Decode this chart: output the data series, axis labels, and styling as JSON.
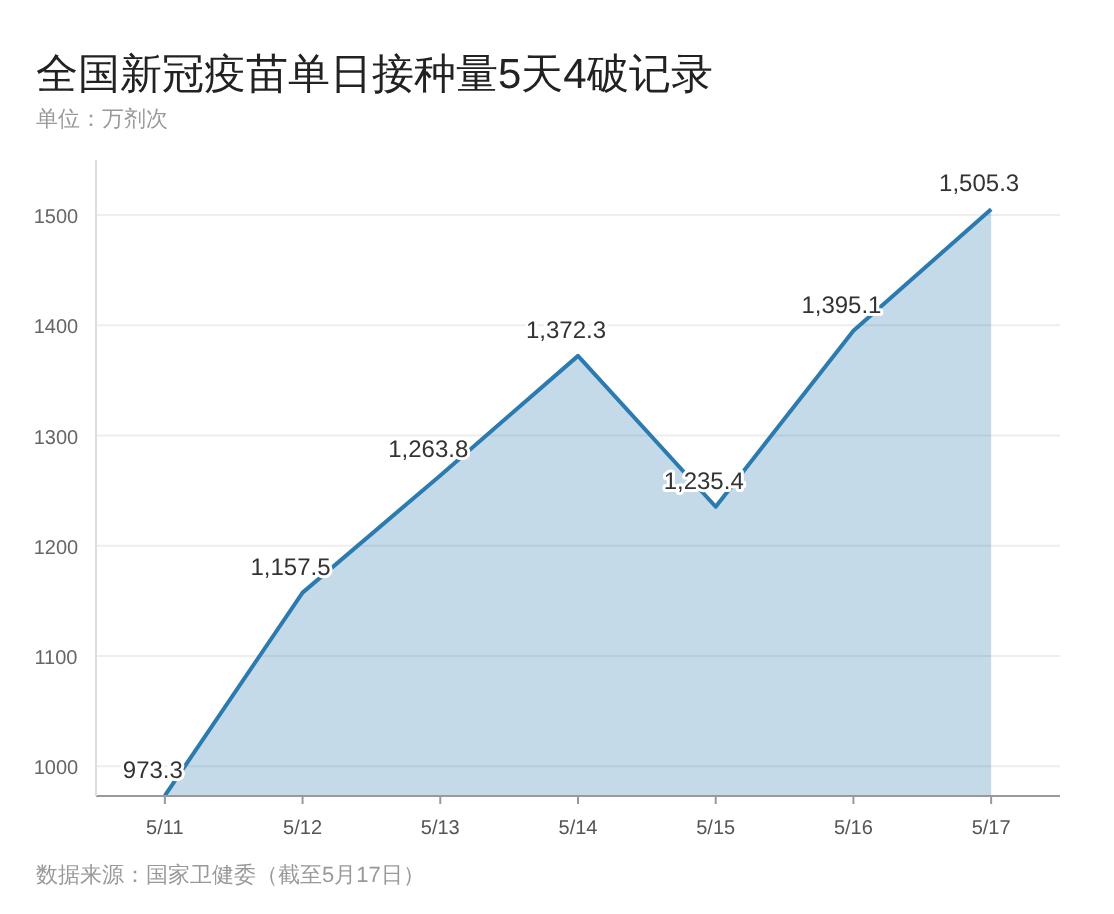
{
  "chart_data": {
    "type": "area",
    "title": "全国新冠疫苗单日接种量5天4破记录",
    "subtitle": "单位：万剂次",
    "annotations": [
      "数据来源：国家卫健委（截至5月17日）"
    ],
    "categories": [
      "5/11",
      "5/12",
      "5/13",
      "5/14",
      "5/15",
      "5/16",
      "5/17"
    ],
    "series": [
      {
        "color": "#2b7bb0",
        "values": [
          973.3,
          1157.5,
          1263.8,
          1372.3,
          1235.4,
          1395.1,
          1505.3
        ],
        "value_labels": [
          "973.3",
          "1,157.5",
          "1,263.8",
          "1,372.3",
          "1,235.4",
          "1,395.1",
          "1,505.3"
        ]
      }
    ],
    "ylim": [
      973,
      1550
    ],
    "yticks": [
      1000,
      1100,
      1200,
      1300,
      1400,
      1500
    ],
    "grid": "y"
  }
}
